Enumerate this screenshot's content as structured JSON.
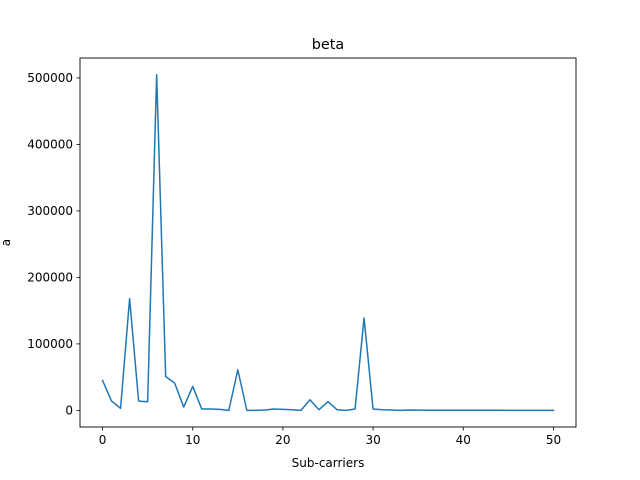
{
  "chart_data": {
    "type": "line",
    "title": "beta",
    "xlabel": "Sub-carriers",
    "ylabel": "a",
    "xlim": [
      -2.5,
      52.5
    ],
    "ylim": [
      -25000,
      530000
    ],
    "xticks": [
      0,
      10,
      20,
      30,
      40,
      50
    ],
    "xtick_labels": [
      "0",
      "10",
      "20",
      "30",
      "40",
      "50"
    ],
    "yticks": [
      0,
      100000,
      200000,
      300000,
      400000,
      500000
    ],
    "ytick_labels": [
      "0",
      "100000",
      "200000",
      "300000",
      "400000",
      "500000"
    ],
    "grid": false,
    "legend": "none",
    "series": [
      {
        "color": "#1f77b4",
        "x": [
          0,
          1,
          2,
          3,
          4,
          5,
          6,
          7,
          8,
          9,
          10,
          11,
          12,
          13,
          14,
          15,
          16,
          17,
          18,
          19,
          20,
          21,
          22,
          23,
          24,
          25,
          26,
          27,
          28,
          29,
          30,
          31,
          32,
          33,
          34,
          35,
          36,
          37,
          38,
          39,
          40,
          41,
          42,
          43,
          44,
          45,
          46,
          47,
          48,
          49,
          50
        ],
        "values": [
          45000,
          14000,
          3000,
          168000,
          14000,
          13000,
          505000,
          51000,
          41000,
          5000,
          36000,
          2000,
          2000,
          1500,
          0,
          61000,
          0,
          0,
          500,
          2000,
          1500,
          1000,
          0,
          16000,
          1000,
          13000,
          1000,
          0,
          2000,
          139000,
          2000,
          1000,
          500,
          0,
          500,
          300,
          200,
          200,
          150,
          150,
          150,
          120,
          110,
          100,
          100,
          90,
          80,
          70,
          60,
          50,
          40
        ]
      }
    ]
  }
}
